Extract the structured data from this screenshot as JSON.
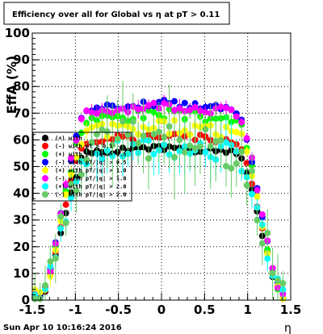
{
  "chart_data": {
    "type": "scatter",
    "title": "Efficiency over all for Global vs   η at pT > 0.11",
    "xlabel": "η",
    "ylabel": "EffA (%)",
    "xlim": [
      -1.5,
      1.5
    ],
    "ylim": [
      0,
      100
    ],
    "grid": true,
    "legend_position": "left",
    "timestamp": "Sun Apr 10 10:16:24 2016",
    "xticks": [
      "-1.5",
      "-1",
      "-0.5",
      "0",
      "0.5",
      "1",
      "1.5"
    ],
    "yticks": [
      "0",
      "10",
      "20",
      "30",
      "40",
      "50",
      "60",
      "70",
      "80",
      "90",
      "100"
    ],
    "series": [
      {
        "name": "(+) with",
        "color": "#000000",
        "kind": "plateau",
        "plateau": 57,
        "spread": 1.2,
        "err": 1.5,
        "seed": 1
      },
      {
        "name": "(-) with pT > 0.1",
        "color": "#ff0000",
        "kind": "plateau",
        "plateau": 62,
        "spread": 1.2,
        "err": 1.5,
        "seed": 2
      },
      {
        "name": "(+) with pT/|q| > 0.5",
        "color": "#00ff00",
        "kind": "plateau",
        "plateau": 70,
        "spread": 2.0,
        "err": 2.5,
        "seed": 3
      },
      {
        "name": "(-) with pT/|q| > 0.5",
        "color": "#0000ff",
        "kind": "plateau",
        "plateau": 74,
        "spread": 1.2,
        "err": 1.5,
        "seed": 4
      },
      {
        "name": "(+) with pT/|q| > 1.0",
        "color": "#ffff00",
        "kind": "plateau",
        "plateau": 65,
        "spread": 3.0,
        "err": 5,
        "seed": 5
      },
      {
        "name": "(-) with pT/|q| > 1.0",
        "color": "#ff00ff",
        "kind": "plateau",
        "plateau": 73,
        "spread": 1.5,
        "err": 3,
        "seed": 6
      },
      {
        "name": "(+) with pT/|q| > 2.0",
        "color": "#00ffff",
        "kind": "plateau",
        "plateau": 57,
        "spread": 4.0,
        "err": 9,
        "seed": 7
      },
      {
        "name": "(-) with pT/|q| > 2.0",
        "color": "#66cc66",
        "kind": "plateau",
        "plateau": 60,
        "spread": 9.0,
        "err": 14,
        "seed": 8
      }
    ]
  }
}
